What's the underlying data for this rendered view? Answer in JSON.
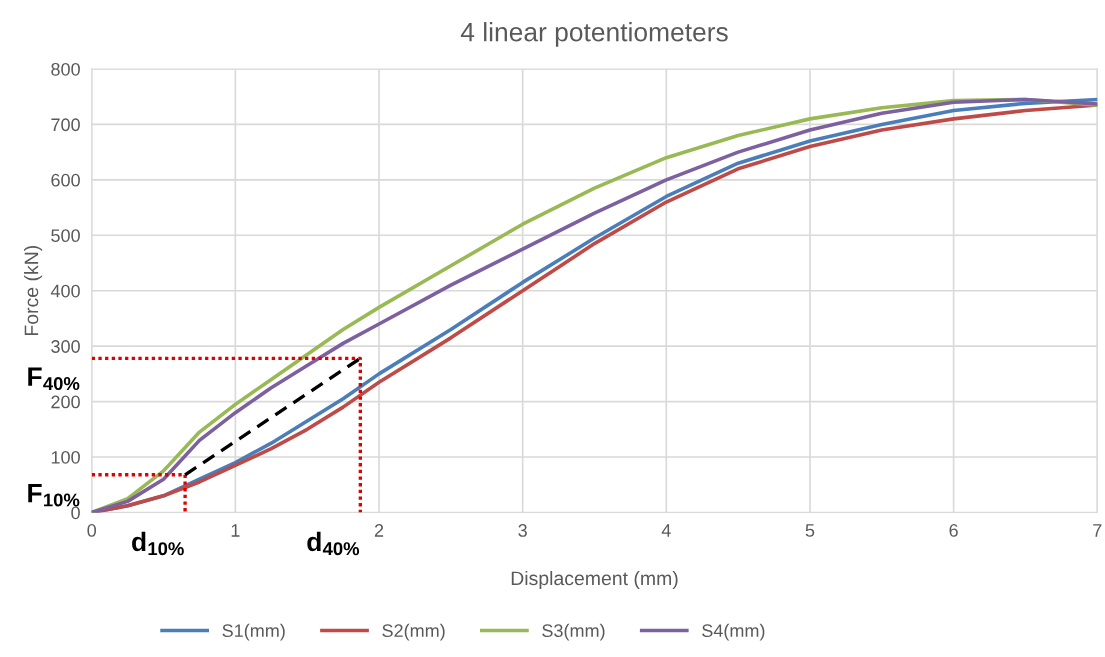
{
  "chart_data": {
    "type": "line",
    "title": "4 linear potentiometers",
    "xlabel": "Displacement (mm)",
    "ylabel": "Force (kN)",
    "xlim": [
      0,
      7
    ],
    "ylim": [
      0,
      800
    ],
    "xticks": [
      0,
      1,
      2,
      3,
      4,
      5,
      6,
      7
    ],
    "yticks": [
      0,
      100,
      200,
      300,
      400,
      500,
      600,
      700,
      800
    ],
    "grid": true,
    "legend": "bottom",
    "marker": "none",
    "line_style": "solid",
    "x": [
      0,
      0.25,
      0.5,
      0.75,
      1,
      1.25,
      1.5,
      1.75,
      2,
      2.5,
      3,
      3.5,
      4,
      4.5,
      5,
      5.5,
      6,
      6.5,
      7
    ],
    "series": [
      {
        "name": "S1(mm)",
        "color": "#4a7ebb",
        "values": [
          0,
          12,
          30,
          60,
          90,
          125,
          165,
          205,
          250,
          330,
          415,
          495,
          570,
          630,
          670,
          700,
          725,
          738,
          745
        ]
      },
      {
        "name": "S2(mm)",
        "color": "#be4b48",
        "values": [
          0,
          12,
          30,
          55,
          85,
          115,
          150,
          190,
          235,
          315,
          400,
          485,
          560,
          620,
          660,
          690,
          710,
          725,
          735
        ]
      },
      {
        "name": "S3(mm)",
        "color": "#98b954",
        "values": [
          0,
          25,
          75,
          145,
          195,
          240,
          285,
          330,
          370,
          445,
          520,
          585,
          640,
          680,
          710,
          730,
          743,
          745,
          735
        ]
      },
      {
        "name": "S4(mm)",
        "color": "#7d60a0",
        "values": [
          0,
          20,
          60,
          130,
          180,
          225,
          265,
          305,
          340,
          410,
          475,
          540,
          600,
          650,
          690,
          720,
          740,
          745,
          737
        ]
      },
      {
        "type": "line",
        "color": "#e00000",
        "line_style": "dotted",
        "x": [
          0,
          0.65,
          0.65
        ],
        "values": [
          68,
          68,
          0
        ]
      },
      {
        "type": "line",
        "color": "#e00000",
        "line_style": "dotted",
        "x": [
          0,
          1.87,
          1.87
        ],
        "values": [
          278,
          278,
          0
        ]
      },
      {
        "type": "line",
        "color": "#000000",
        "line_style": "dashed",
        "x": [
          0.65,
          1.87
        ],
        "values": [
          68,
          278
        ]
      }
    ],
    "annotations": [
      {
        "text": "F$_{40%}$",
        "x": 0,
        "y": 278
      },
      {
        "text": "F$_{10%}$",
        "x": 0,
        "y": 68
      },
      {
        "text": "d$_{10%}$",
        "x": 0.65,
        "y": 0
      },
      {
        "text": "d$_{40%}$",
        "x": 1.87,
        "y": 0
      }
    ]
  }
}
